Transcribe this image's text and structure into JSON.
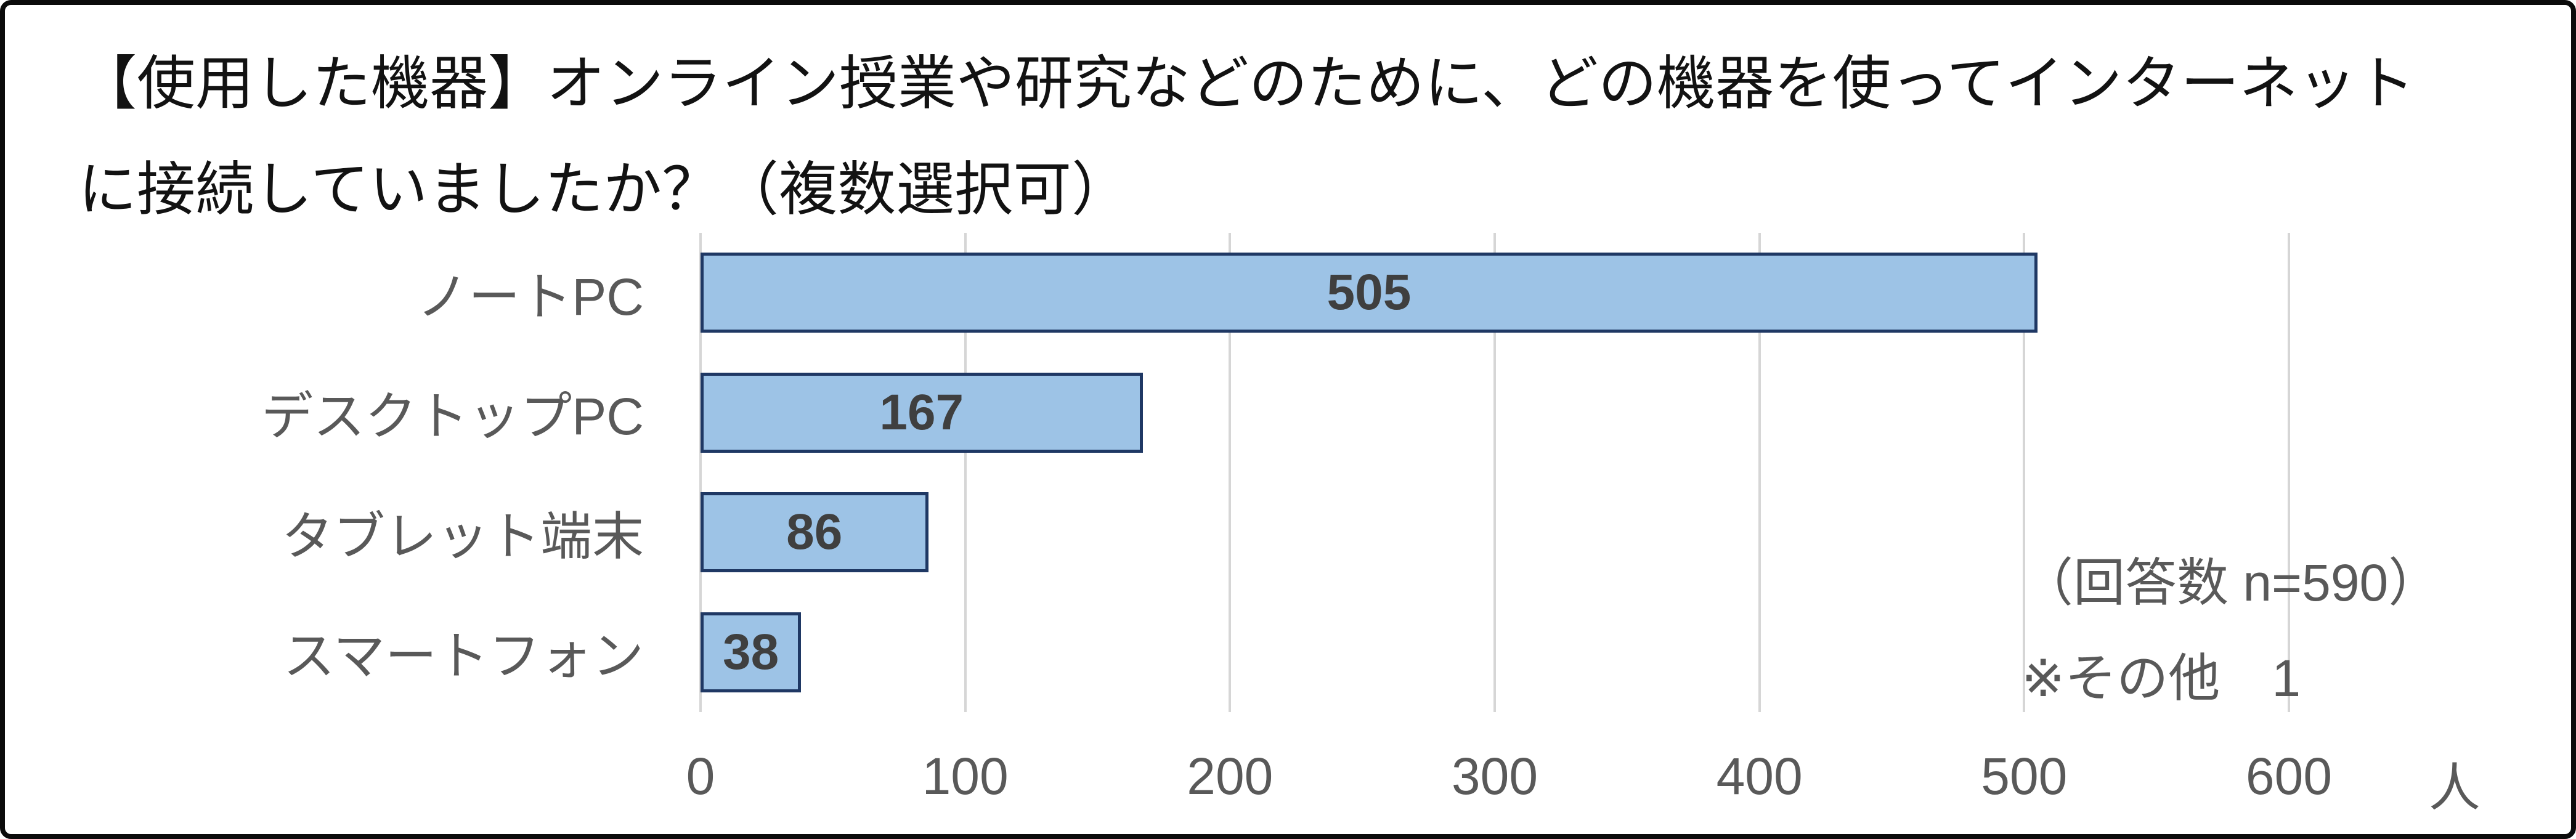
{
  "title": {
    "line1": "【使用した機器】オンライン授業や研究などのために、どの機器を使ってインターネット",
    "line2": "に接続していましたか？（複数選択可）"
  },
  "chart_data": {
    "type": "bar",
    "orientation": "horizontal",
    "title": "【使用した機器】オンライン授業や研究などのために、どの機器を使ってインターネットに接続していましたか？（複数選択可）",
    "categories": [
      "ノートPC",
      "デスクトップPC",
      "タブレット端末",
      "スマートフォン"
    ],
    "values": [
      505,
      167,
      86,
      38
    ],
    "xlim": [
      0,
      600
    ],
    "xticks": [
      "0",
      "100",
      "200",
      "300",
      "400",
      "500",
      "600"
    ],
    "xtick_values": [
      0,
      100,
      200,
      300,
      400,
      500,
      600
    ],
    "unit_label": "人",
    "grid": true,
    "legend": "none",
    "value_labels": [
      "505",
      "167",
      "86",
      "38"
    ],
    "annotations": {
      "line1": "（回答数 n=590）",
      "line2": "※その他　1"
    },
    "colors": {
      "bar_fill": "#9DC3E6",
      "bar_border": "#1F3864",
      "gridline": "#D6D6D6",
      "tick_text": "#595959",
      "category_text": "#595959",
      "value_text": "#3F3F3F",
      "annotation_text": "#595959",
      "title_text": "#121212",
      "frame_border": "#0B0B0B"
    }
  }
}
